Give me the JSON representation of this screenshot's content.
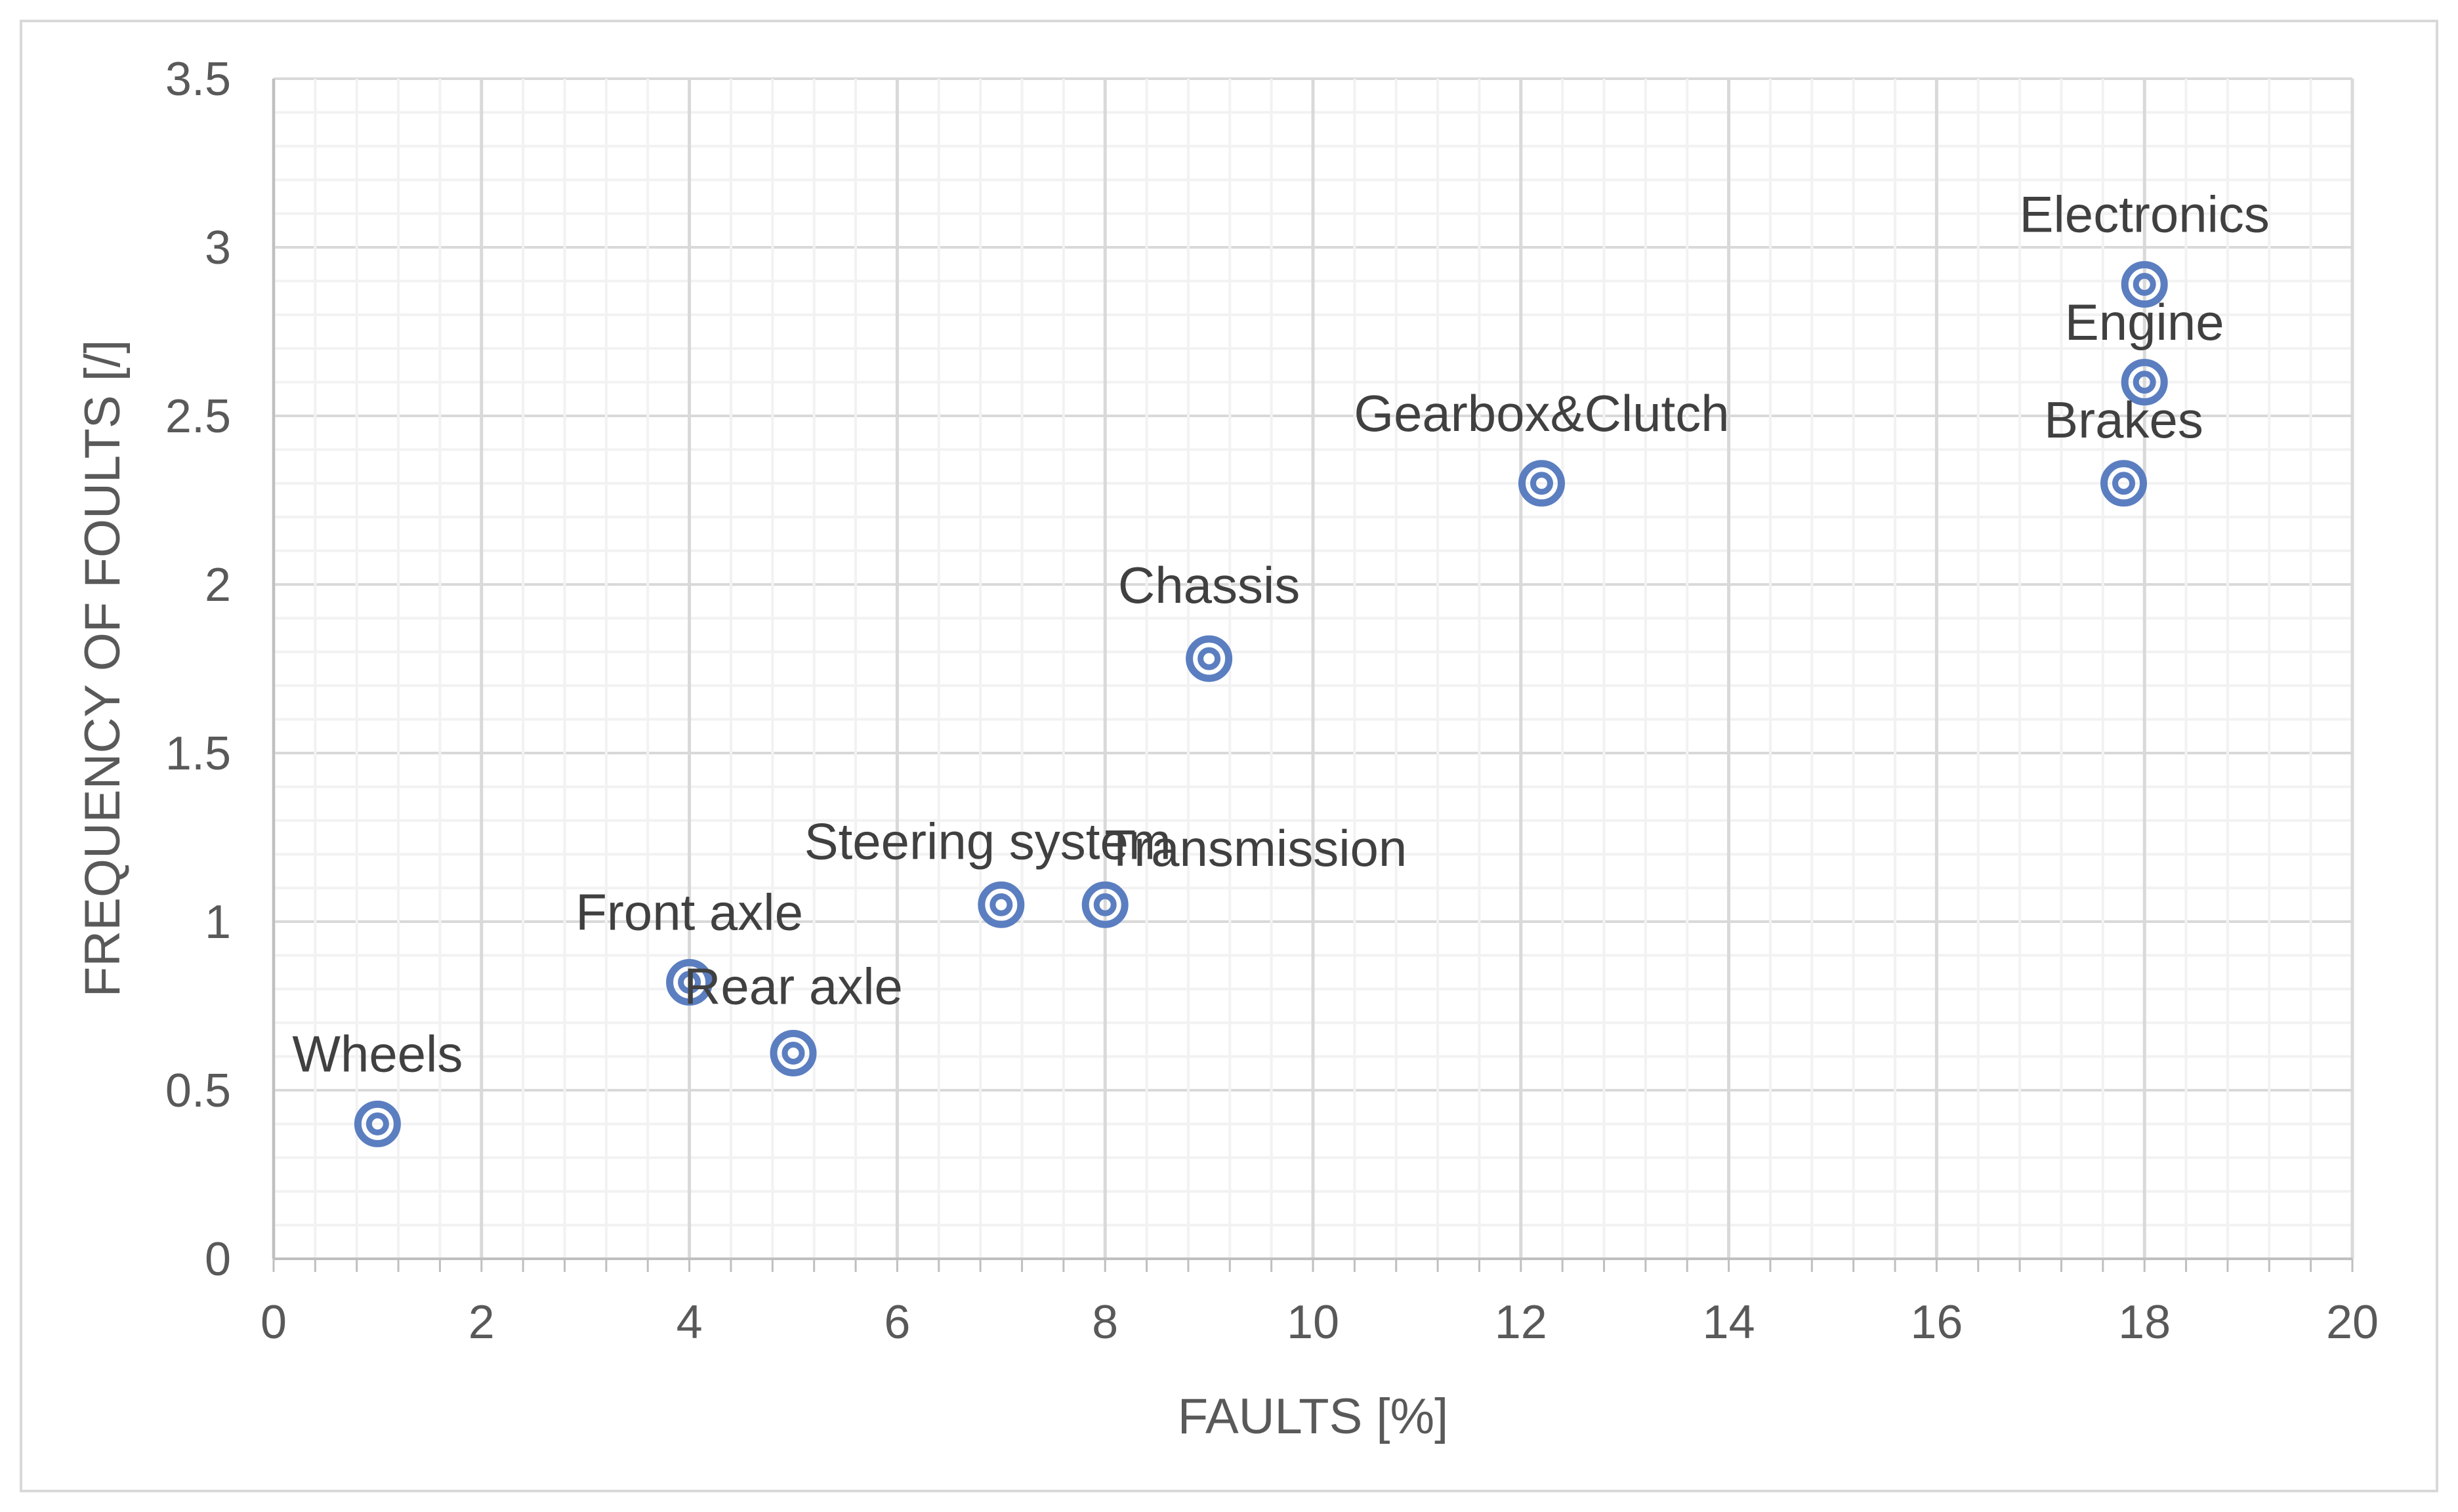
{
  "chart_data": {
    "type": "scatter",
    "title": "",
    "xlabel": "FAULTS [%]",
    "ylabel": "FREQUENCY OF FOULTS [/]",
    "xlim": [
      0,
      20
    ],
    "ylim": [
      0,
      3.5
    ],
    "x_major_step": 2,
    "x_minor_step": 0.4,
    "y_major_step": 0.5,
    "y_minor_step": 0.1,
    "grid": "major and minor, both axes",
    "legend": "none",
    "x_ticks": [
      "0",
      "2",
      "4",
      "6",
      "8",
      "10",
      "12",
      "14",
      "16",
      "18",
      "20"
    ],
    "y_ticks": [
      "0",
      "0.5",
      "1",
      "1.5",
      "2",
      "2.5",
      "3",
      "3.5"
    ],
    "points": [
      {
        "label": "Wheels",
        "x": 1,
        "y": 0.4,
        "label_at": [
          1,
          0.61
        ]
      },
      {
        "label": "Front axle",
        "x": 4,
        "y": 0.82,
        "label_at": [
          4,
          1.03
        ]
      },
      {
        "label": "Rear axle",
        "x": 5,
        "y": 0.61,
        "label_at": [
          5,
          0.81
        ]
      },
      {
        "label": "Steering system",
        "x": 7,
        "y": 1.05,
        "label_at": [
          6.87,
          1.24
        ]
      },
      {
        "label": "Transmission",
        "x": 8,
        "y": 1.05,
        "label_at": [
          9.45,
          1.22
        ]
      },
      {
        "label": "Chassis",
        "x": 9,
        "y": 1.78,
        "label_at": [
          9,
          2.0
        ]
      },
      {
        "label": "Gearbox&Clutch",
        "x": 12.2,
        "y": 2.3,
        "label_at": [
          12.2,
          2.51
        ]
      },
      {
        "label": "Brakes",
        "x": 17.8,
        "y": 2.3,
        "label_at": [
          17.8,
          2.49
        ]
      },
      {
        "label": "Engine",
        "x": 18,
        "y": 2.6,
        "label_at": [
          18,
          2.78
        ]
      },
      {
        "label": "Electronics",
        "x": 18,
        "y": 2.89,
        "label_at": [
          18,
          3.1
        ]
      }
    ]
  },
  "colors": {
    "marker": "#5B7EC0",
    "grid_major": "#D9D9D9",
    "grid_minor": "#F2F2F2",
    "axis_line": "#BFBFBF",
    "tick_text": "#595959",
    "title_text": "#595959",
    "data_label_text": "#404040",
    "chart_border": "#D9D9D9",
    "background": "#FFFFFF"
  }
}
